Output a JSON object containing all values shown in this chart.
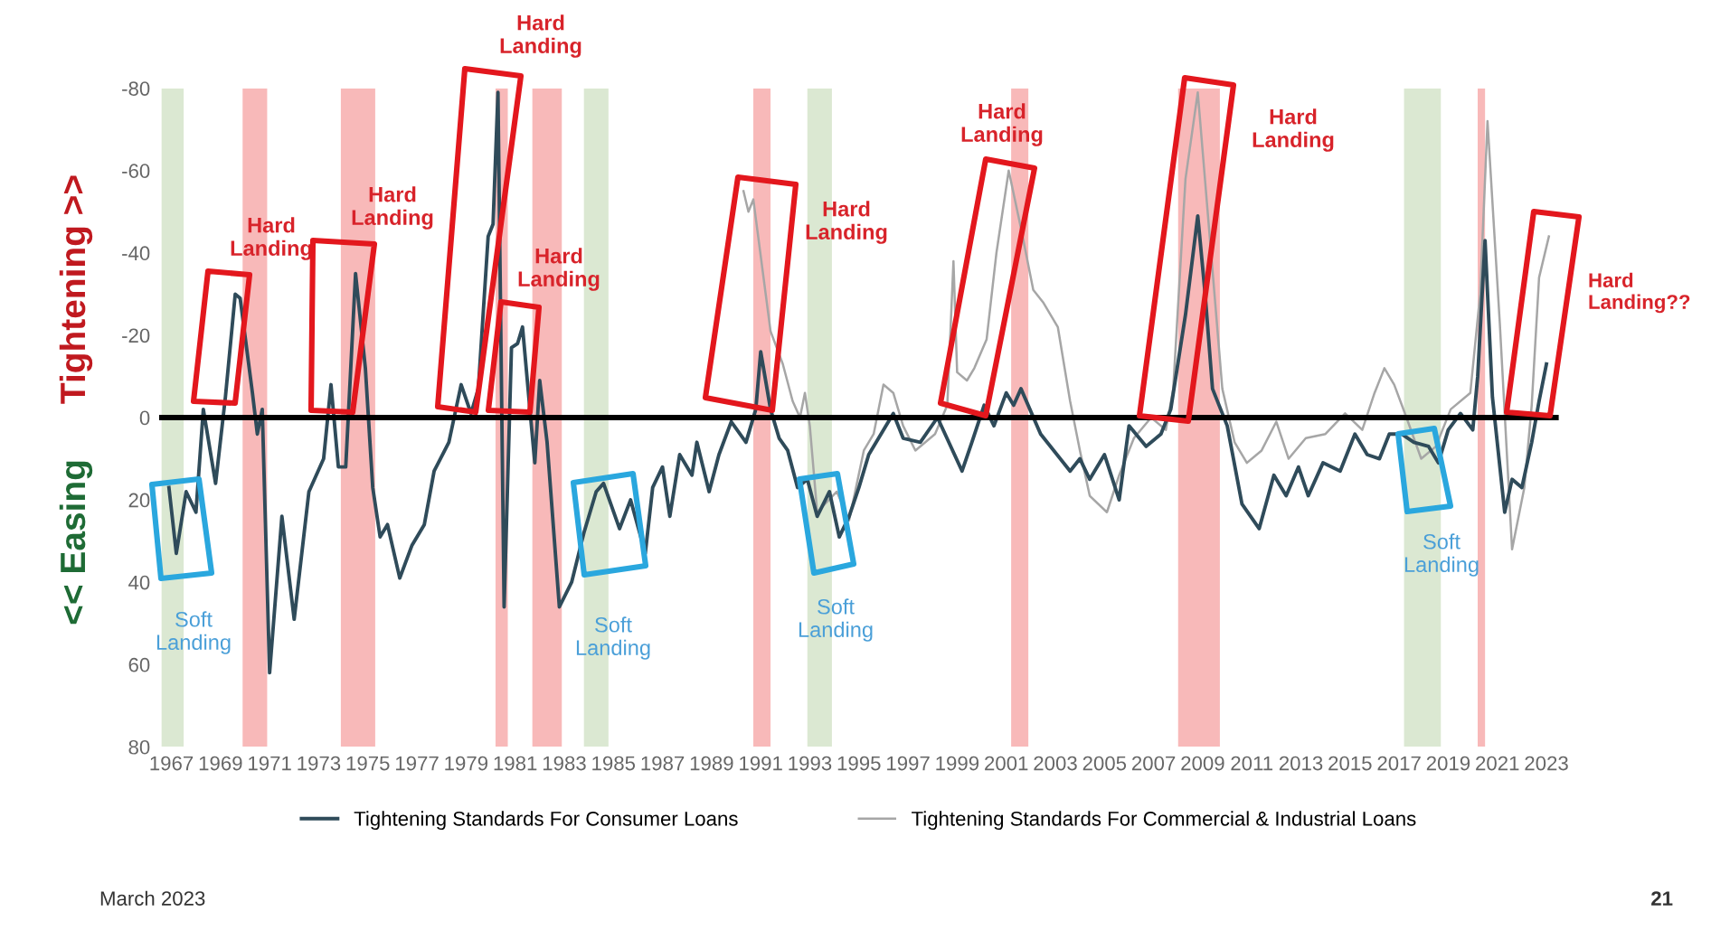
{
  "chart_data": {
    "type": "line",
    "xlim": [
      1966.5,
      2023.5
    ],
    "xticks": [
      1967,
      1969,
      1971,
      1973,
      1975,
      1977,
      1979,
      1981,
      1983,
      1985,
      1987,
      1989,
      1991,
      1993,
      1995,
      1997,
      1999,
      2001,
      2003,
      2005,
      2007,
      2009,
      2011,
      2013,
      2015,
      2017,
      2019,
      2021,
      2023
    ],
    "ylim": [
      80,
      -80
    ],
    "yticks": [
      -80,
      -60,
      -40,
      -20,
      0,
      20,
      40,
      60,
      80
    ],
    "grid": false,
    "legend": "bottom",
    "series": [
      {
        "name": "Tightening Standards For Consumer Loans",
        "color": "#2f4b5a",
        "x": [
          1966.9,
          1967.2,
          1967.6,
          1968.0,
          1968.3,
          1968.8,
          1969.2,
          1969.6,
          1969.8,
          1970.3,
          1970.5,
          1970.7,
          1971.0,
          1971.5,
          1972.0,
          1972.6,
          1973.2,
          1973.5,
          1973.8,
          1974.1,
          1974.5,
          1974.9,
          1975.2,
          1975.5,
          1975.8,
          1976.3,
          1976.8,
          1977.3,
          1977.7,
          1978.3,
          1978.8,
          1979.2,
          1979.5,
          1979.9,
          1980.1,
          1980.3,
          1980.55,
          1980.85,
          1981.1,
          1981.3,
          1981.6,
          1981.8,
          1982.0,
          1982.3,
          1982.8,
          1983.3,
          1983.8,
          1984.3,
          1984.6,
          1985.25,
          1985.7,
          1986.3,
          1986.6,
          1987.0,
          1987.3,
          1987.7,
          1988.2,
          1988.4,
          1988.9,
          1989.3,
          1989.8,
          1990.4,
          1990.8,
          1991.0,
          1991.4,
          1991.75,
          1992.1,
          1992.5,
          1992.9,
          1993.3,
          1993.8,
          1994.2,
          1994.6,
          1995.0,
          1995.4,
          1996.0,
          1996.4,
          1996.8,
          1997.5,
          1998.2,
          1999.2,
          1999.6,
          2000.1,
          2000.5,
          2001.0,
          2001.3,
          2001.6,
          2002.4,
          2003.6,
          2004.0,
          2004.4,
          2005.0,
          2005.6,
          2006.0,
          2006.7,
          2007.3,
          2007.7,
          2008.3,
          2008.8,
          2009.1,
          2009.4,
          2010.0,
          2010.6,
          2011.3,
          2011.9,
          2012.4,
          2012.9,
          2013.3,
          2013.9,
          2014.6,
          2015.2,
          2015.7,
          2016.2,
          2016.6,
          2017.1,
          2017.6,
          2018.2,
          2018.6,
          2019.0,
          2019.5,
          2020.0,
          2020.2,
          2020.5,
          2020.8,
          2021.3,
          2021.6,
          2022.0,
          2022.4,
          2022.7,
          2023.0
        ],
        "values": [
          17,
          33,
          18,
          23,
          -2,
          16,
          -5,
          -30,
          -29,
          -6,
          4,
          -2,
          62,
          24,
          49,
          18,
          10,
          -8,
          12,
          12,
          -35,
          -12,
          17,
          29,
          26,
          39,
          31,
          26,
          13,
          6,
          -8,
          -1,
          -7,
          -44,
          -47,
          -79,
          46,
          -17,
          -18,
          -22,
          -2,
          11,
          -9,
          6,
          46,
          40,
          28,
          18,
          16,
          27,
          20,
          33,
          17,
          12,
          24,
          9,
          14,
          6,
          18,
          9,
          1,
          6,
          -2,
          -16,
          -2,
          5,
          8,
          17,
          15,
          24,
          18,
          29,
          24,
          17,
          9,
          3,
          -1,
          5,
          6,
          0,
          13,
          6,
          -3,
          2,
          -6,
          -3,
          -7,
          4,
          13,
          10,
          15,
          9,
          20,
          2,
          7,
          4,
          -2,
          -25,
          -49,
          -30,
          -7,
          2,
          21,
          27,
          14,
          19,
          12,
          19,
          11,
          13,
          4,
          9,
          10,
          4,
          4,
          6,
          7,
          11,
          3,
          -1,
          3,
          -10,
          -43,
          -5,
          23,
          15,
          17,
          6,
          -4,
          -13
        ]
      },
      {
        "name": "Tightening Standards For Commercial & Industrial Loans",
        "color": "#a6a6a6",
        "x": [
          1990.3,
          1990.5,
          1990.7,
          1991.4,
          1991.9,
          1992.3,
          1992.6,
          1992.8,
          1993.0,
          1993.3,
          1994.1,
          1994.6,
          1995.2,
          1995.6,
          1996.0,
          1996.4,
          1996.8,
          1997.3,
          1998.1,
          1998.6,
          1998.85,
          1999.0,
          1999.4,
          1999.7,
          2000.2,
          2000.6,
          2001.1,
          2001.6,
          2002.1,
          2002.5,
          2003.1,
          2003.6,
          2004.0,
          2004.4,
          2005.1,
          2005.6,
          2006.2,
          2006.9,
          2007.5,
          2007.8,
          2008.3,
          2008.8,
          2009.3,
          2009.8,
          2010.3,
          2010.8,
          2011.4,
          2012.0,
          2012.5,
          2013.2,
          2014.0,
          2014.8,
          2015.5,
          2016.0,
          2016.4,
          2016.8,
          2017.3,
          2017.9,
          2018.5,
          2019.1,
          2019.9,
          2020.3,
          2020.6,
          2021.1,
          2021.6,
          2022.1,
          2022.4,
          2022.7,
          2023.1
        ],
        "values": [
          -55,
          -50,
          -53,
          -21,
          -13,
          -4,
          0,
          -6,
          2,
          23,
          18,
          25,
          8,
          4,
          -8,
          -6,
          2,
          8,
          4,
          -3,
          -38,
          -11,
          -9,
          -12,
          -19,
          -40,
          -60,
          -46,
          -31,
          -28,
          -22,
          -4,
          8,
          19,
          23,
          14,
          5,
          0,
          3,
          -7,
          -58,
          -79,
          -43,
          -7,
          6,
          11,
          8,
          1,
          10,
          5,
          4,
          -1,
          3,
          -6,
          -12,
          -8,
          0,
          10,
          7,
          -2,
          -6,
          -30,
          -72,
          -23,
          32,
          17,
          -3,
          -34,
          -44
        ]
      }
    ],
    "ref_lines": [
      {
        "axis": "y",
        "value": 0,
        "color": "#000000"
      }
    ],
    "bands": [
      {
        "axis": "x",
        "from": 1969.9,
        "to": 1970.9,
        "color": "#f8b9b9"
      },
      {
        "axis": "x",
        "from": 1973.9,
        "to": 1975.3,
        "color": "#f8b9b9"
      },
      {
        "axis": "x",
        "from": 1980.2,
        "to": 1980.7,
        "color": "#f8b9b9"
      },
      {
        "axis": "x",
        "from": 1981.7,
        "to": 1982.9,
        "color": "#f8b9b9"
      },
      {
        "axis": "x",
        "from": 1990.7,
        "to": 1991.4,
        "color": "#f8b9b9"
      },
      {
        "axis": "x",
        "from": 2001.2,
        "to": 2001.9,
        "color": "#f8b9b9"
      },
      {
        "axis": "x",
        "from": 2008.0,
        "to": 2009.7,
        "color": "#f8b9b9"
      },
      {
        "axis": "x",
        "from": 2020.2,
        "to": 2020.5,
        "color": "#f8b9b9"
      },
      {
        "axis": "x",
        "from": 1966.6,
        "to": 1967.5,
        "color": "#dbe8d2"
      },
      {
        "axis": "x",
        "from": 1983.8,
        "to": 1984.8,
        "color": "#dbe8d2"
      },
      {
        "axis": "x",
        "from": 1992.9,
        "to": 1993.9,
        "color": "#dbe8d2"
      },
      {
        "axis": "x",
        "from": 2017.2,
        "to": 2018.7,
        "color": "#dbe8d2"
      }
    ],
    "annotations": [
      "Hard\nLanding",
      "Hard\nLanding",
      "Hard\nLanding",
      "Hard\nLanding",
      "Hard\nLanding",
      "Hard\nLanding",
      "Hard\nLanding",
      "Hard\nLanding??",
      "Soft\nLanding",
      "Soft\nLanding",
      "Soft\nLanding",
      "Soft\nLanding",
      "Tightening >>",
      "<< Easing",
      "March 2023",
      "21"
    ]
  }
}
